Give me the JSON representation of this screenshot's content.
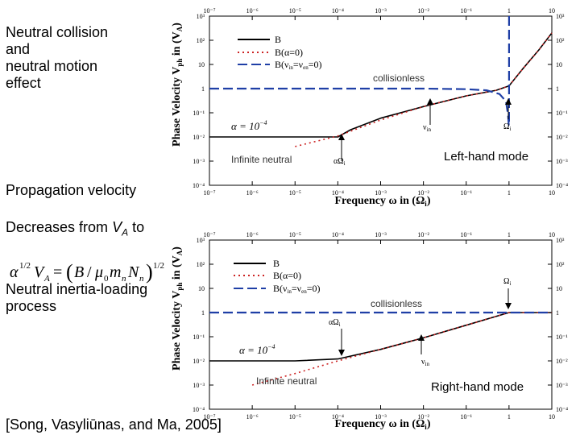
{
  "left": {
    "title_lines": [
      "Neutral collision",
      "and",
      "neutral motion",
      "effect"
    ],
    "propagation": "Propagation velocity",
    "decreases_prefix": "Decreases from",
    "decreases_var": "V",
    "decreases_sub": "A",
    "decreases_suffix": "to",
    "inertia_lines": [
      "Neutral inertia-loading",
      "process"
    ],
    "citation": "[Song, Vasyliūnas, and Ma, 2005]"
  },
  "chart_data": [
    {
      "type": "line",
      "title": "",
      "mode_label": "Left-hand mode",
      "xlabel": "Frequency ω in (Ω_i)",
      "ylabel": "Phase Velocity V_ph in (V_A)",
      "xscale": "log",
      "yscale": "log",
      "xlim": [
        1e-07,
        10
      ],
      "ylim": [
        0.0001,
        1000
      ],
      "x_ticks": [
        "10⁻⁷",
        "10⁻⁶",
        "10⁻⁵",
        "10⁻⁴",
        "10⁻³",
        "10⁻²",
        "10⁻¹",
        "1",
        "10"
      ],
      "y_ticks": [
        "10³",
        "10²",
        "10",
        "1",
        "10⁻¹",
        "10⁻²",
        "10⁻³",
        "10⁻⁴"
      ],
      "legend_position": "top-center",
      "legend": [
        "B",
        "B(α=0)",
        "B(ν_in=ν_en=0)"
      ],
      "series": [
        {
          "name": "B",
          "style": "solid-black",
          "x": [
            1e-07,
            1e-05,
            0.0001,
            0.0002,
            0.001,
            0.01,
            0.1,
            0.5,
            1.0,
            2,
            5,
            10
          ],
          "y": [
            0.01,
            0.01,
            0.01,
            0.02,
            0.06,
            0.18,
            0.5,
            0.85,
            1.3,
            6,
            40,
            200
          ]
        },
        {
          "name": "B(α=0)",
          "style": "dotted-red",
          "x": [
            1e-05,
            0.0001,
            0.001,
            0.01,
            0.1,
            0.5,
            1.0,
            2,
            5,
            10
          ],
          "y": [
            0.004,
            0.011,
            0.05,
            0.18,
            0.5,
            0.85,
            1.3,
            6,
            40,
            200
          ]
        },
        {
          "name": "B(ν_in=ν_en=0)",
          "style": "dashed-blue",
          "x": [
            1e-07,
            0.01,
            0.1,
            0.3,
            0.6,
            0.85,
            0.95,
            0.99,
            1.0,
            1.0
          ],
          "y": [
            1,
            1,
            0.95,
            0.85,
            0.6,
            0.3,
            0.08,
            0.03,
            0.03,
            1000
          ]
        }
      ],
      "annotations": [
        "α=10⁻⁴",
        "collisionless",
        "Infinite neutral",
        "αΩ_i",
        "ν_in",
        "Ω_i"
      ]
    },
    {
      "type": "line",
      "title": "",
      "mode_label": "Right-hand mode",
      "xlabel": "Frequency ω in (Ω_i)",
      "ylabel": "Phase Velocity V_ph in (V_A)",
      "xscale": "log",
      "yscale": "log",
      "xlim": [
        1e-07,
        10
      ],
      "ylim": [
        0.0001,
        1000
      ],
      "x_ticks": [
        "10⁻⁷",
        "10⁻⁶",
        "10⁻⁵",
        "10⁻⁴",
        "10⁻³",
        "10⁻²",
        "10⁻¹",
        "1",
        "10"
      ],
      "y_ticks": [
        "10³",
        "10²",
        "10",
        "1",
        "10⁻¹",
        "10⁻²",
        "10⁻³",
        "10⁻⁴"
      ],
      "legend_position": "top-center",
      "legend": [
        "B",
        "B(α=0)",
        "B(ν_in=ν_en=0)"
      ],
      "series": [
        {
          "name": "B",
          "style": "solid-black",
          "x": [
            1e-07,
            1e-05,
            0.0001,
            0.001,
            0.01,
            0.1,
            1,
            10
          ],
          "y": [
            0.01,
            0.01,
            0.012,
            0.03,
            0.09,
            0.3,
            1,
            1
          ]
        },
        {
          "name": "B(α=0)",
          "style": "dotted-red",
          "x": [
            1e-06,
            1e-05,
            0.0001,
            0.001,
            0.01,
            0.1,
            1,
            10
          ],
          "y": [
            0.001,
            0.003,
            0.01,
            0.03,
            0.09,
            0.3,
            1,
            1
          ]
        },
        {
          "name": "B(ν_in=ν_en=0)",
          "style": "dashed-blue",
          "x": [
            1e-07,
            0.1,
            1,
            10
          ],
          "y": [
            1,
            1,
            1,
            1
          ]
        }
      ],
      "annotations": [
        "α=10⁻⁴",
        "collisionless",
        "Infinite neutral",
        "αΩ_i",
        "ν_in",
        "Ω_i"
      ]
    }
  ]
}
